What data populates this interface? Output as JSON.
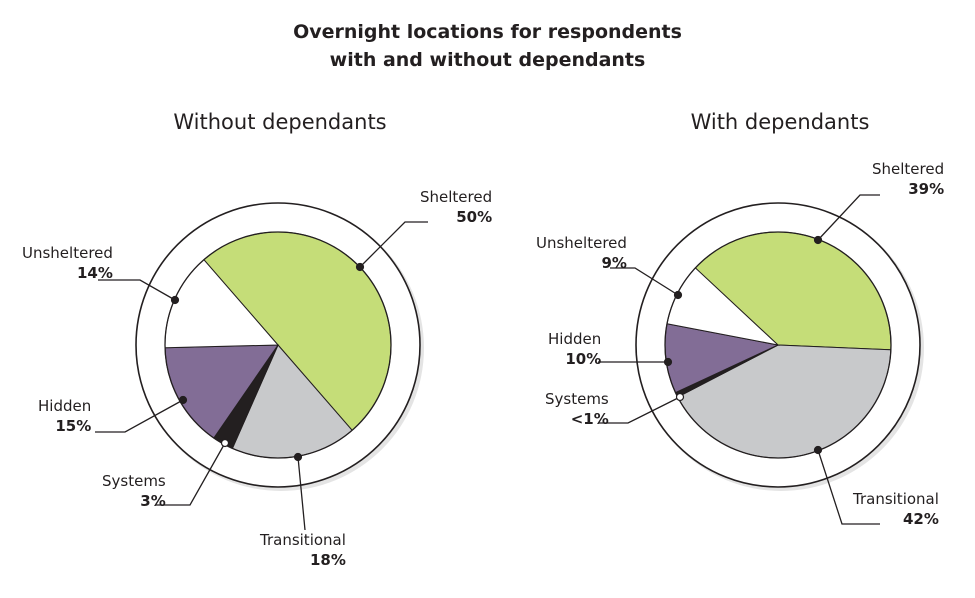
{
  "chart_data": [
    {
      "type": "pie",
      "title": "Overnight locations for respondents with and without dependants",
      "subtitle": "Without dependants",
      "slices": [
        {
          "label": "Sheltered",
          "value": 50,
          "value_label": "50%",
          "color": "#c5dd78"
        },
        {
          "label": "Transitional",
          "value": 18,
          "value_label": "18%",
          "color": "#c8c9cb"
        },
        {
          "label": "Systems",
          "value": 3,
          "value_label": "3%",
          "color": "#231f20"
        },
        {
          "label": "Hidden",
          "value": 15,
          "value_label": "15%",
          "color": "#826d96"
        },
        {
          "label": "Unsheltered",
          "value": 14,
          "value_label": "14%",
          "color": "#ffffff"
        }
      ]
    },
    {
      "type": "pie",
      "subtitle": "With dependants",
      "slices": [
        {
          "label": "Sheltered",
          "value": 39,
          "value_label": "39%",
          "color": "#c5dd78"
        },
        {
          "label": "Transitional",
          "value": 42,
          "value_label": "42%",
          "color": "#c8c9cb"
        },
        {
          "label": "Systems",
          "value": 0.7,
          "value_label": "<1%",
          "color": "#231f20"
        },
        {
          "label": "Hidden",
          "value": 10,
          "value_label": "10%",
          "color": "#826d96"
        },
        {
          "label": "Unsheltered",
          "value": 9,
          "value_label": "9%",
          "color": "#ffffff"
        }
      ]
    }
  ],
  "title_line1": "Overnight locations for respondents",
  "title_line2": "with and without dependants"
}
